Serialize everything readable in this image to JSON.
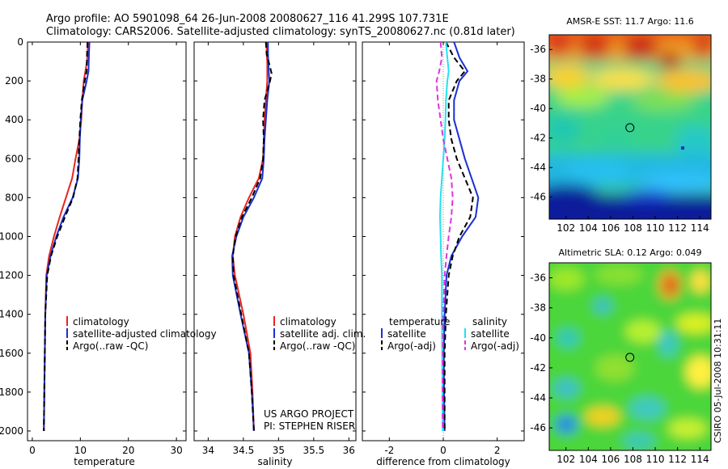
{
  "header": {
    "line1": "Argo profile: AO 5901098_64 26-Jun-2008 20080627_116 41.299S 107.731E",
    "line2": "Climatology: CARS2006. Satellite-adjusted climatology: synTS_20080627.nc (0.81d later)"
  },
  "colors": {
    "climatology": "#e8251e",
    "satellite": "#1a2fd0",
    "argo": "#000000",
    "sal_satellite": "#22e2f0",
    "sal_argo": "#e033e0"
  },
  "chart_data": [
    {
      "id": "temperature",
      "type": "line",
      "xlabel": "temperature",
      "xlim": [
        -1,
        32
      ],
      "ylim": [
        2050,
        0
      ],
      "xticks": [
        0,
        10,
        20,
        30
      ],
      "xtick_labels": [
        "0",
        "10",
        "20",
        "30"
      ],
      "yticks": [
        0,
        200,
        400,
        600,
        800,
        1000,
        1200,
        1400,
        1600,
        1800,
        2000
      ],
      "ytick_labels": [
        "0",
        "200",
        "400",
        "600",
        "800",
        "1000",
        "1200",
        "1400",
        "1600",
        "1800",
        "2000"
      ],
      "legend": {
        "position": "lower-left",
        "entries": [
          {
            "label": "climatology",
            "color": "#e8251e",
            "style": "solid"
          },
          {
            "label": "satellite-adjusted climatology",
            "color": "#1a2fd0",
            "style": "solid"
          },
          {
            "label": "Argo(..raw -QC)",
            "color": "#000000",
            "style": "dashed"
          }
        ]
      },
      "series": [
        {
          "name": "climatology",
          "color": "#e8251e",
          "style": "solid",
          "x": [
            11.6,
            11.5,
            11.4,
            10.7,
            10.4,
            10.2,
            9.8,
            9.0,
            8.3,
            7.0,
            5.7,
            4.5,
            3.5,
            2.9,
            2.7,
            2.6,
            2.5,
            2.4
          ],
          "y": [
            0,
            60,
            100,
            200,
            300,
            400,
            500,
            600,
            700,
            800,
            900,
            1000,
            1100,
            1200,
            1400,
            1600,
            1800,
            2000
          ]
        },
        {
          "name": "satellite-adjusted climatology",
          "color": "#1a2fd0",
          "style": "solid",
          "x": [
            11.9,
            11.8,
            11.7,
            11.3,
            10.4,
            10.1,
            9.9,
            9.8,
            9.5,
            8.4,
            6.5,
            5.0,
            3.8,
            3.0,
            2.7,
            2.6,
            2.5,
            2.4
          ],
          "y": [
            0,
            60,
            150,
            200,
            300,
            400,
            500,
            600,
            700,
            800,
            900,
            1000,
            1100,
            1200,
            1400,
            1600,
            1800,
            2000
          ]
        },
        {
          "name": "Argo(..raw -QC)",
          "color": "#000000",
          "style": "dashed",
          "x": [
            11.5,
            11.4,
            11.3,
            10.9,
            10.3,
            10.0,
            9.8,
            9.6,
            9.4,
            8.5,
            6.8,
            5.2,
            3.9,
            3.1,
            2.7,
            2.6,
            2.5,
            2.4
          ],
          "y": [
            0,
            60,
            150,
            200,
            300,
            400,
            500,
            600,
            700,
            800,
            900,
            1000,
            1100,
            1200,
            1400,
            1600,
            1800,
            2000
          ]
        }
      ]
    },
    {
      "id": "salinity",
      "type": "line",
      "xlabel": "salinity",
      "xlim": [
        33.8,
        36.1
      ],
      "ylim": [
        2050,
        0
      ],
      "xticks": [
        34,
        34.5,
        35,
        35.5,
        36
      ],
      "xtick_labels": [
        "34",
        "34.5",
        "35",
        "35.5",
        "36"
      ],
      "yticks": [
        0,
        200,
        400,
        600,
        800,
        1000,
        1200,
        1400,
        1600,
        1800,
        2000
      ],
      "legend": {
        "position": "lower-right",
        "entries": [
          {
            "label": "climatology",
            "color": "#e8251e",
            "style": "solid"
          },
          {
            "label": "satellite adj. clim.",
            "color": "#1a2fd0",
            "style": "solid"
          },
          {
            "label": "Argo(..raw -QC)",
            "color": "#000000",
            "style": "dashed"
          }
        ]
      },
      "annotations": [
        "US ARGO PROJECT",
        "PI: STEPHEN RISER"
      ],
      "series": [
        {
          "name": "climatology",
          "color": "#e8251e",
          "style": "solid",
          "x": [
            34.83,
            34.83,
            34.84,
            34.84,
            34.82,
            34.8,
            34.79,
            34.78,
            34.72,
            34.58,
            34.46,
            34.38,
            34.35,
            34.38,
            34.5,
            34.6,
            34.63,
            34.65
          ],
          "y": [
            0,
            60,
            100,
            200,
            300,
            400,
            500,
            600,
            700,
            800,
            900,
            1000,
            1100,
            1200,
            1400,
            1600,
            1800,
            2000
          ]
        },
        {
          "name": "satellite adj. clim.",
          "color": "#1a2fd0",
          "style": "solid",
          "x": [
            34.85,
            34.85,
            34.86,
            34.87,
            34.84,
            34.82,
            34.8,
            34.79,
            34.77,
            34.65,
            34.5,
            34.4,
            34.34,
            34.35,
            34.46,
            34.58,
            34.62,
            34.65
          ],
          "y": [
            0,
            60,
            150,
            200,
            300,
            400,
            500,
            600,
            700,
            800,
            900,
            1000,
            1100,
            1200,
            1400,
            1600,
            1800,
            2000
          ]
        },
        {
          "name": "Argo(..raw -QC)",
          "color": "#000000",
          "style": "dashed",
          "x": [
            34.82,
            34.83,
            34.9,
            34.88,
            34.8,
            34.78,
            34.79,
            34.78,
            34.74,
            34.62,
            34.48,
            34.39,
            34.35,
            34.36,
            34.47,
            34.58,
            34.62,
            34.65
          ],
          "y": [
            0,
            60,
            160,
            200,
            300,
            400,
            500,
            600,
            700,
            800,
            900,
            1000,
            1100,
            1200,
            1400,
            1600,
            1800,
            2000
          ]
        }
      ]
    },
    {
      "id": "difference",
      "type": "line",
      "xlabel": "difference from climatology",
      "xlim": [
        -3,
        3
      ],
      "ylim": [
        2050,
        0
      ],
      "xticks": [
        -2,
        0,
        2
      ],
      "xtick_labels": [
        "-2",
        "0",
        "2"
      ],
      "yticks": [
        0,
        200,
        400,
        600,
        800,
        1000,
        1200,
        1400,
        1600,
        1800,
        2000
      ],
      "legend": {
        "position": "lower-center",
        "columns": [
          {
            "title": "temperature",
            "entries": [
              {
                "label": "satellite",
                "color": "#1a2fd0",
                "style": "solid"
              },
              {
                "label": "Argo(-adj)",
                "color": "#000000",
                "style": "dashed"
              }
            ]
          },
          {
            "title": "salinity",
            "entries": [
              {
                "label": "satellite",
                "color": "#22e2f0",
                "style": "solid"
              },
              {
                "label": "Argo(-adj)",
                "color": "#e033e0",
                "style": "dashed"
              }
            ]
          }
        ]
      },
      "series": [
        {
          "name": "temperature satellite",
          "color": "#1a2fd0",
          "style": "solid",
          "x": [
            0.4,
            0.6,
            0.9,
            0.6,
            0.4,
            0.4,
            0.6,
            0.8,
            1.05,
            1.3,
            1.2,
            0.7,
            0.3,
            0.12,
            0.05,
            0.02,
            0.03,
            0.05
          ],
          "y": [
            0,
            80,
            150,
            200,
            300,
            400,
            500,
            600,
            700,
            800,
            900,
            1000,
            1100,
            1200,
            1400,
            1600,
            1800,
            2000
          ]
        },
        {
          "name": "temperature Argo(-adj)",
          "color": "#000000",
          "style": "dashed",
          "x": [
            0.1,
            0.4,
            0.8,
            0.5,
            0.2,
            0.2,
            0.3,
            0.5,
            0.8,
            1.1,
            1.0,
            0.6,
            0.35,
            0.2,
            0.1,
            0.05,
            0.05,
            0.05
          ],
          "y": [
            0,
            80,
            150,
            200,
            300,
            400,
            500,
            600,
            700,
            800,
            900,
            1000,
            1100,
            1200,
            1400,
            1600,
            1800,
            2000
          ]
        },
        {
          "name": "salinity satellite",
          "color": "#22e2f0",
          "style": "solid",
          "x": [
            0.1,
            0.15,
            0.2,
            0.15,
            0.1,
            0.08,
            0.05,
            0.0,
            -0.05,
            -0.1,
            -0.12,
            -0.1,
            -0.08,
            -0.05,
            -0.05,
            -0.04,
            -0.03,
            -0.02
          ],
          "y": [
            0,
            80,
            150,
            200,
            300,
            400,
            500,
            600,
            700,
            800,
            900,
            1000,
            1100,
            1200,
            1400,
            1600,
            1800,
            2000
          ]
        },
        {
          "name": "salinity Argo(-adj)",
          "color": "#e033e0",
          "style": "dashed",
          "x": [
            -0.1,
            -0.05,
            -0.15,
            -0.25,
            -0.2,
            -0.1,
            0.0,
            0.15,
            0.3,
            0.35,
            0.3,
            0.2,
            0.12,
            0.05,
            0.0,
            -0.02,
            -0.03,
            -0.02
          ],
          "y": [
            0,
            80,
            150,
            200,
            300,
            400,
            500,
            600,
            700,
            800,
            900,
            1000,
            1100,
            1200,
            1400,
            1600,
            1800,
            2000
          ]
        }
      ]
    },
    {
      "id": "sst_map",
      "type": "heatmap",
      "title": "AMSR-E SST: 11.7 Argo: 11.6",
      "xlim": [
        100.5,
        115
      ],
      "ylim": [
        -47.5,
        -35
      ],
      "xticks": [
        102,
        104,
        106,
        108,
        110,
        112,
        114
      ],
      "xtick_labels": [
        "102",
        "104",
        "106",
        "108",
        "110",
        "112",
        "114"
      ],
      "yticks": [
        -36,
        -38,
        -40,
        -42,
        -44,
        -46
      ],
      "ytick_labels": [
        "-36",
        "-38",
        "-40",
        "-42",
        "-44",
        "-46"
      ],
      "marker": {
        "lon": 107.73,
        "lat": -41.3
      }
    },
    {
      "id": "sla_map",
      "type": "heatmap",
      "title": "Altimetric SLA: 0.12 Argo: 0.049",
      "xlim": [
        100.5,
        115
      ],
      "ylim": [
        -47.5,
        -35
      ],
      "xticks": [
        102,
        104,
        106,
        108,
        110,
        112,
        114
      ],
      "xtick_labels": [
        "102",
        "104",
        "106",
        "108",
        "110",
        "112",
        "114"
      ],
      "yticks": [
        -36,
        -38,
        -40,
        -42,
        -44,
        -46
      ],
      "ytick_labels": [
        "-36",
        "-38",
        "-40",
        "-42",
        "-44",
        "-46"
      ],
      "marker": {
        "lon": 107.73,
        "lat": -41.3
      }
    }
  ],
  "side_label": "CSIRO 05-Jul-2008 10:31:11"
}
